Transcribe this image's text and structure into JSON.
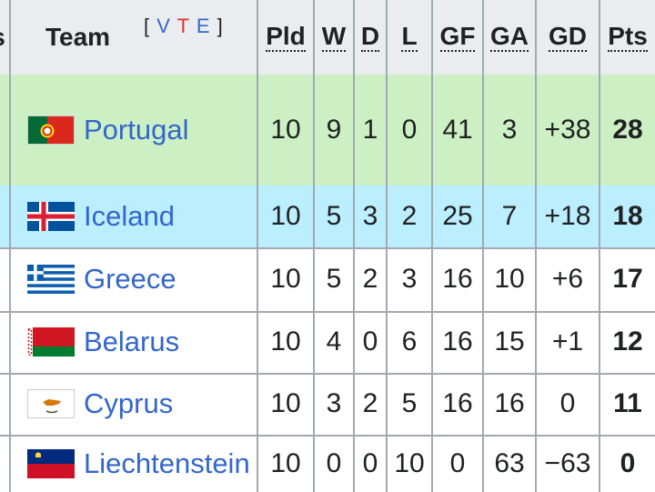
{
  "header": {
    "prev_col_glyph": "s",
    "team_label": "Team",
    "vte": {
      "open": "[",
      "v": "V",
      "t": "T",
      "e": "E",
      "close": "]"
    },
    "columns": [
      "Pld",
      "W",
      "D",
      "L",
      "GF",
      "GA",
      "GD",
      "Pts"
    ]
  },
  "colors": {
    "qualified": "#ccf0c4",
    "playoff": "#bbeeff",
    "link": "#3366cc",
    "border": "#a2a9b1"
  },
  "rows": [
    {
      "team": "Portugal",
      "flag": "portugal-flag-icon",
      "pld": "10",
      "w": "9",
      "d": "1",
      "l": "0",
      "gf": "41",
      "ga": "3",
      "gd": "+38",
      "pts": "28",
      "status": "qualified"
    },
    {
      "team": "Iceland",
      "flag": "iceland-flag-icon",
      "pld": "10",
      "w": "5",
      "d": "3",
      "l": "2",
      "gf": "25",
      "ga": "7",
      "gd": "+18",
      "pts": "18",
      "status": "playoff"
    },
    {
      "team": "Greece",
      "flag": "greece-flag-icon",
      "pld": "10",
      "w": "5",
      "d": "2",
      "l": "3",
      "gf": "16",
      "ga": "10",
      "gd": "+6",
      "pts": "17",
      "status": "none"
    },
    {
      "team": "Belarus",
      "flag": "belarus-flag-icon",
      "pld": "10",
      "w": "4",
      "d": "0",
      "l": "6",
      "gf": "16",
      "ga": "15",
      "gd": "+1",
      "pts": "12",
      "status": "none"
    },
    {
      "team": "Cyprus",
      "flag": "cyprus-flag-icon",
      "pld": "10",
      "w": "3",
      "d": "2",
      "l": "5",
      "gf": "16",
      "ga": "16",
      "gd": "0",
      "pts": "11",
      "status": "none"
    },
    {
      "team": "Liechtenstein",
      "flag": "liechtenstein-flag-icon",
      "pld": "10",
      "w": "0",
      "d": "0",
      "l": "10",
      "gf": "0",
      "ga": "63",
      "gd": "−63",
      "pts": "0",
      "status": "none"
    }
  ]
}
